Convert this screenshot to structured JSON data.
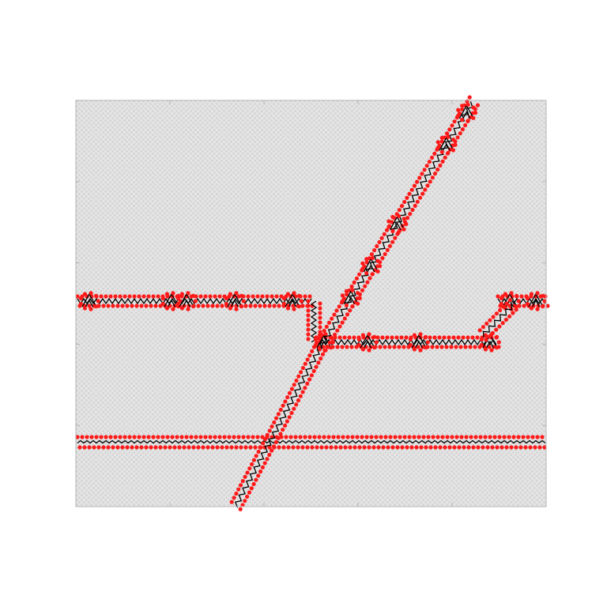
{
  "figure": {
    "description_free": true,
    "colors": {
      "background": "#ffffff",
      "lattice_fill": "#e4e4e4",
      "lattice_dot": "#cfcfcf",
      "frame": "#b3b3b3",
      "defect_atom": "#ff1a1a",
      "bond_line": "#000000"
    },
    "axes": {
      "xticks": 6,
      "yticks": 6,
      "tick_labels": "none"
    },
    "structures": [
      {
        "name": "upper-horizontal-dislocation-wall",
        "kind": "zigzag-with-triangular-loops"
      },
      {
        "name": "lower-horizontal-dislocation-wall",
        "kind": "straight-double-row"
      },
      {
        "name": "lower-diagonal-dislocation",
        "kind": "zigzag-diagonal"
      },
      {
        "name": "upper-diagonal-dislocation",
        "kind": "zigzag-diagonal-with-loops"
      },
      {
        "name": "middle-horizontal-dislocation-wall",
        "kind": "zigzag-with-triangular-loops"
      }
    ]
  }
}
